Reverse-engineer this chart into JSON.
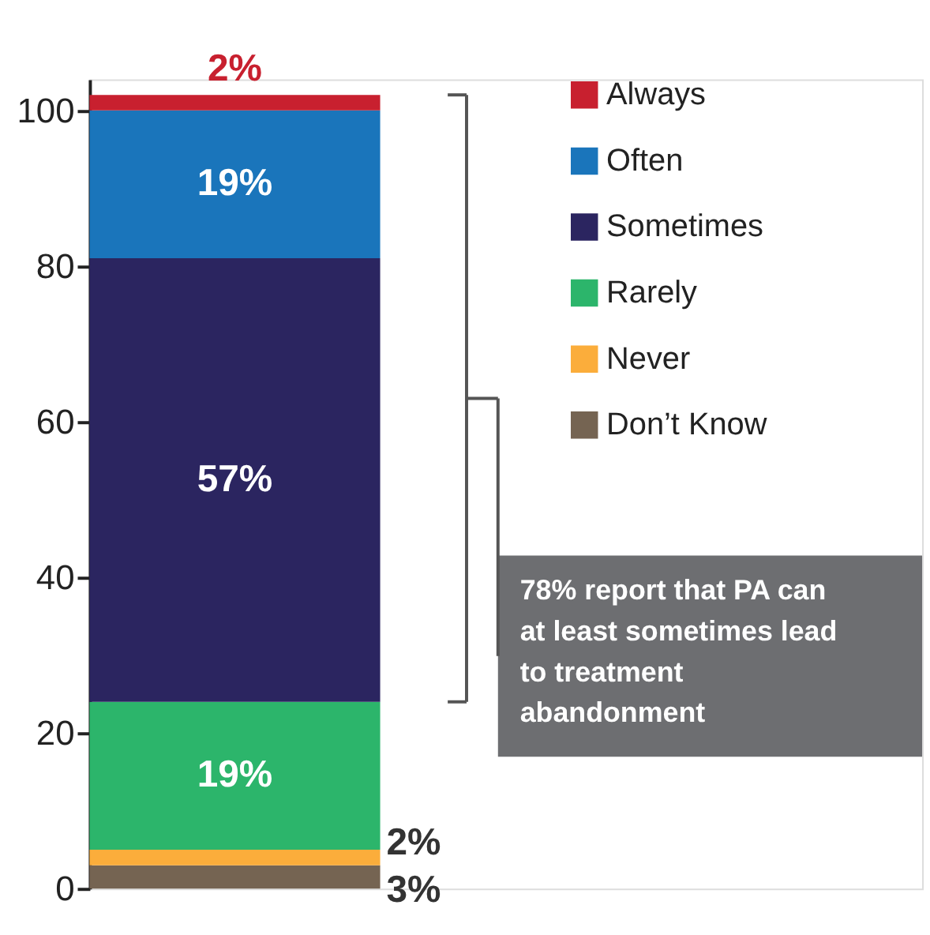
{
  "chart_data": {
    "type": "bar",
    "stacked": true,
    "categories": [
      null
    ],
    "series": [
      {
        "name": "Don’t Know",
        "color": "#756452",
        "values": [
          3
        ],
        "value_labels": [
          "3%"
        ]
      },
      {
        "name": "Never",
        "color": "#fbad3b",
        "values": [
          2
        ],
        "value_labels": [
          "2%"
        ]
      },
      {
        "name": "Rarely",
        "color": "#2cb56b",
        "values": [
          19
        ],
        "value_labels": [
          "19%"
        ]
      },
      {
        "name": "Sometimes",
        "color": "#2b2560",
        "values": [
          57
        ],
        "value_labels": [
          "57%"
        ]
      },
      {
        "name": "Often",
        "color": "#1a75bb",
        "values": [
          19
        ],
        "value_labels": [
          "19%"
        ]
      },
      {
        "name": "Always",
        "color": "#c8202f",
        "values": [
          2
        ],
        "value_labels": [
          "2%"
        ]
      }
    ],
    "ylim": [
      0,
      104
    ],
    "yticks": [
      0,
      20,
      40,
      60,
      80,
      100
    ],
    "legend": "top right",
    "grid": false,
    "annotations": [
      "78% report that PA can at least sometimes lead to treatment abandonment"
    ]
  }
}
